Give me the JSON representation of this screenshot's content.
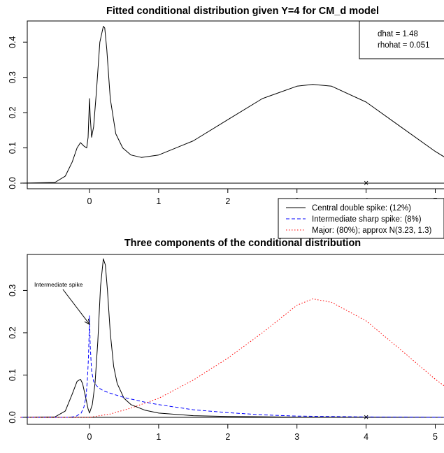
{
  "chart_data": [
    {
      "type": "line",
      "title": "Fitted conditional distribution given Y=4 for CM_d model",
      "xlabel": "",
      "ylabel": "",
      "xlim": [
        -1.0,
        5.25
      ],
      "ylim": [
        0,
        0.46
      ],
      "x_ticks": [
        "0",
        "1",
        "2",
        "3",
        "4",
        "5"
      ],
      "y_ticks": [
        "0.0",
        "0.1",
        "0.2",
        "0.3",
        "0.4"
      ],
      "grid": false,
      "legend": "none",
      "annotation_lines": [
        "dhat =  1.48",
        "rhohat =  0.051"
      ],
      "marker": {
        "symbol": "×",
        "x": 4,
        "y": 0
      },
      "series": [
        {
          "color": "#000000",
          "dash": "solid",
          "x": [
            -1.0,
            -0.5,
            -0.35,
            -0.25,
            -0.18,
            -0.13,
            -0.08,
            -0.04,
            -0.02,
            0.0,
            0.01,
            0.03,
            0.06,
            0.1,
            0.15,
            0.2,
            0.22,
            0.25,
            0.3,
            0.38,
            0.48,
            0.6,
            0.75,
            1.0,
            1.5,
            2.0,
            2.5,
            3.0,
            3.23,
            3.5,
            4.0,
            4.5,
            5.0,
            5.25
          ],
          "y": [
            0.0,
            0.002,
            0.02,
            0.06,
            0.1,
            0.115,
            0.105,
            0.1,
            0.13,
            0.24,
            0.19,
            0.13,
            0.16,
            0.26,
            0.4,
            0.445,
            0.44,
            0.38,
            0.24,
            0.14,
            0.1,
            0.08,
            0.073,
            0.08,
            0.12,
            0.18,
            0.24,
            0.275,
            0.28,
            0.275,
            0.23,
            0.16,
            0.09,
            0.06
          ]
        }
      ]
    },
    {
      "type": "line",
      "title": "Three components of the conditional distribution",
      "xlabel": "",
      "ylabel": "",
      "xlim": [
        -1.0,
        5.25
      ],
      "ylim": [
        0,
        0.385
      ],
      "x_ticks": [
        "0",
        "1",
        "2",
        "3",
        "4",
        "5"
      ],
      "y_ticks": [
        "0.0",
        "0.1",
        "0.2",
        "0.3"
      ],
      "grid": false,
      "legend": "top-right",
      "annotation": {
        "text": "Intermediate spike",
        "arrow_to": {
          "x": 0.0,
          "y": 0.22
        }
      },
      "marker": {
        "symbol": "×",
        "x": 4,
        "y": 0
      },
      "series": [
        {
          "name": "Central double spike: (12%)",
          "color": "#000000",
          "dash": "solid",
          "x": [
            -1.0,
            -0.5,
            -0.35,
            -0.25,
            -0.18,
            -0.13,
            -0.1,
            -0.06,
            -0.02,
            0.0,
            0.04,
            0.08,
            0.12,
            0.16,
            0.2,
            0.23,
            0.26,
            0.3,
            0.35,
            0.4,
            0.5,
            0.6,
            0.8,
            1.0,
            1.5,
            2.0,
            3.0,
            5.25
          ],
          "y": [
            0.0,
            0.001,
            0.015,
            0.055,
            0.085,
            0.09,
            0.08,
            0.05,
            0.02,
            0.01,
            0.03,
            0.08,
            0.18,
            0.31,
            0.375,
            0.36,
            0.3,
            0.2,
            0.12,
            0.08,
            0.045,
            0.03,
            0.017,
            0.01,
            0.004,
            0.002,
            0.0005,
            0.0
          ]
        },
        {
          "name": "Intermediate sharp spike: (8%)",
          "color": "#0000ff",
          "dash": "dash",
          "x": [
            -1.0,
            -0.3,
            -0.2,
            -0.12,
            -0.08,
            -0.05,
            -0.03,
            -0.015,
            -0.005,
            0.0,
            0.01,
            0.03,
            0.06,
            0.1,
            0.15,
            0.2,
            0.3,
            0.5,
            0.8,
            1.0,
            1.5,
            2.0,
            2.5,
            3.0,
            4.0,
            5.25
          ],
          "y": [
            0.0,
            0.0,
            0.002,
            0.01,
            0.025,
            0.05,
            0.09,
            0.14,
            0.2,
            0.24,
            0.17,
            0.11,
            0.085,
            0.075,
            0.068,
            0.063,
            0.057,
            0.047,
            0.036,
            0.03,
            0.018,
            0.011,
            0.006,
            0.003,
            0.001,
            0.0
          ]
        },
        {
          "name": "Major: (80%); approx N(3.23, 1.3)",
          "color": "#ff0000",
          "dash": "dot",
          "x": [
            -1.0,
            0.0,
            0.3,
            0.6,
            1.0,
            1.5,
            2.0,
            2.5,
            3.0,
            3.23,
            3.5,
            4.0,
            4.5,
            5.0,
            5.25
          ],
          "y": [
            0.0,
            0.0,
            0.008,
            0.022,
            0.045,
            0.088,
            0.14,
            0.2,
            0.265,
            0.28,
            0.272,
            0.228,
            0.16,
            0.09,
            0.06
          ]
        }
      ]
    }
  ]
}
